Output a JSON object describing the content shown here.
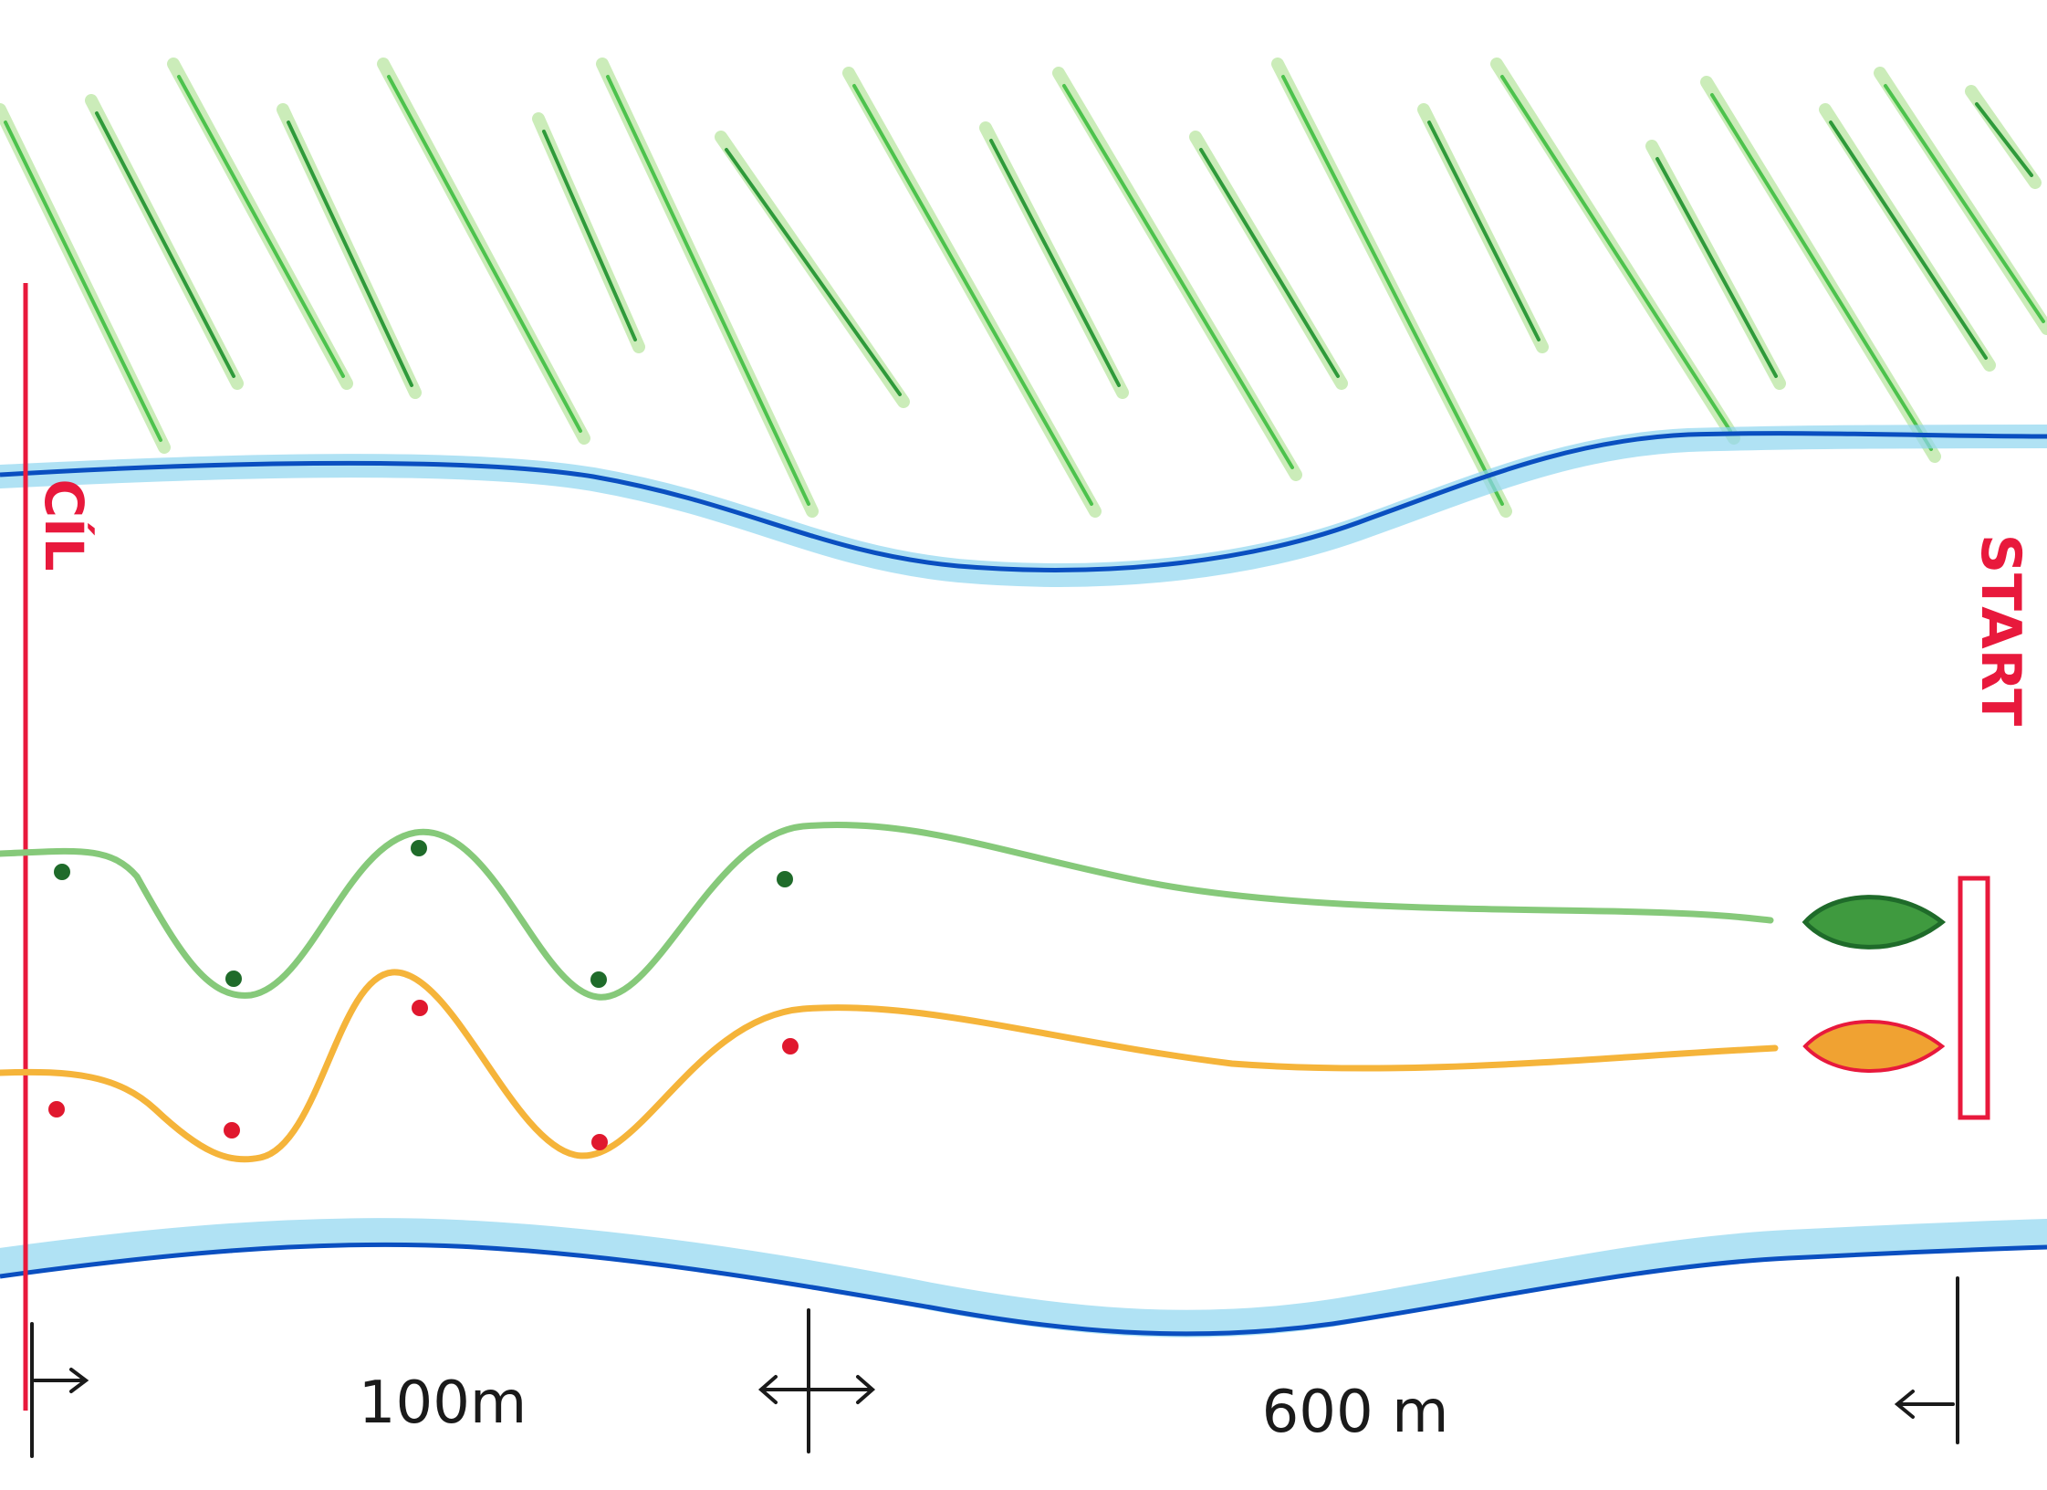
{
  "labels": {
    "finish": "CÍL",
    "start": "START",
    "distance_sprint": "100m",
    "distance_main": "600 m"
  },
  "colors": {
    "grass": "#4cc24c",
    "grass_dark": "#2e9a3a",
    "river_bank": "#0a4fc0",
    "river_shade": "#8fd6f0",
    "line_red": "#e8193c",
    "lane_green": "#86c97a",
    "lane_orange": "#f5b43a",
    "buoy_green": "#1f6b2a",
    "buoy_red": "#e0182e",
    "boat_green": "#3f9a3f",
    "boat_orange": "#f0a232",
    "ink": "#1a1a1a"
  },
  "elements": {
    "grass_area": "grass hatching",
    "river": "river banks",
    "boats": [
      "green-boat",
      "orange-boat"
    ],
    "buoys_per_lane": 5
  }
}
